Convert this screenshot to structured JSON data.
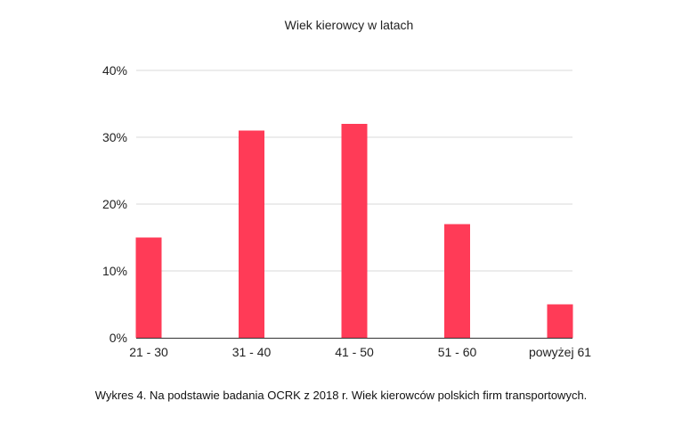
{
  "chart_data": {
    "type": "bar",
    "title": "Wiek kierowcy w latach",
    "categories": [
      "21 - 30",
      "31 - 40",
      "41 - 50",
      "51 - 60",
      "powyżej 61"
    ],
    "series": [
      {
        "values": [
          15,
          31,
          32,
          17,
          5
        ]
      }
    ],
    "xlabel": "",
    "ylabel": "",
    "ylim": [
      0,
      40
    ],
    "yticks": [
      0,
      10,
      20,
      30,
      40
    ],
    "ytick_labels": [
      "0%",
      "10%",
      "20%",
      "30%",
      "40%"
    ],
    "value_unit": "%",
    "grid": true,
    "legend": "none",
    "bar_color": "#ff3b57"
  },
  "caption": "Wykres 4. Na podstawie badania OCRK z 2018 r. Wiek kierowców polskich firm transportowych."
}
